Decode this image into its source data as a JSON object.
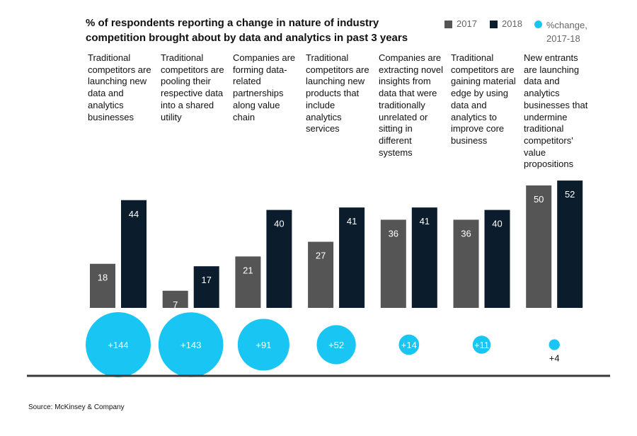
{
  "title": "% of respondents reporting a change in nature of industry competition brought about by data and analytics in past 3 years",
  "legend": [
    {
      "label": "2017",
      "color": "#555555",
      "shape": "square"
    },
    {
      "label": "2018",
      "color": "#0b1c2c",
      "shape": "square"
    },
    {
      "label": "%change, 2017-18",
      "color": "#18c5f3",
      "shape": "circle"
    }
  ],
  "source": "Source: McKinsey & Company",
  "chart_data": {
    "type": "bar",
    "categories": [
      "Traditional competitors are launching new data and analytics businesses",
      "Traditional competitors are pooling their respective data into a shared utility",
      "Companies are forming data-related partnerships along value chain",
      "Traditional competitors are launching new products that include analytics services",
      "Companies are extracting novel insights from data that were traditionally unrelated or sitting in different systems",
      "Traditional competitors are gaining material edge by using data and analytics to improve core business",
      "New entrants are launching data and analytics businesses that undermine traditional competitors' value propositions"
    ],
    "series": [
      {
        "name": "2017",
        "values": [
          18,
          7,
          21,
          27,
          36,
          36,
          50
        ],
        "color": "#555555"
      },
      {
        "name": "2018",
        "values": [
          44,
          17,
          40,
          41,
          41,
          40,
          52
        ],
        "color": "#0b1c2c"
      }
    ],
    "change": {
      "name": "%change, 2017-18",
      "values": [
        144,
        143,
        91,
        52,
        14,
        11,
        4
      ],
      "labels": [
        "+144",
        "+143",
        "+91",
        "+52",
        "+14",
        "+11",
        "+4"
      ],
      "color": "#18c5f3"
    },
    "title": "% of respondents reporting a change in nature of industry competition brought about by data and analytics in past 3 years",
    "xlabel": "",
    "ylabel": "",
    "ylim": [
      0,
      52
    ],
    "grid": false,
    "legend_position": "top-right"
  }
}
